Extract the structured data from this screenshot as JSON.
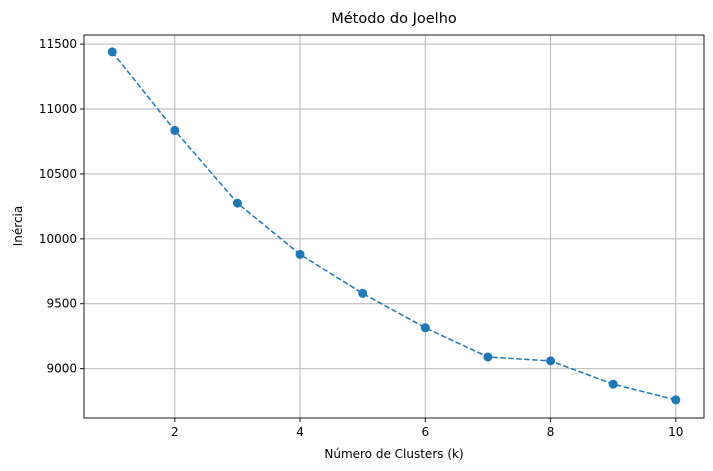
{
  "chart_data": {
    "type": "line",
    "title": "Método do Joelho",
    "xlabel": "Número de Clusters (k)",
    "ylabel": "Inércia",
    "xlim": [
      0.55,
      10.45
    ],
    "ylim": [
      8620,
      11570
    ],
    "xticks": [
      2,
      4,
      6,
      8,
      10
    ],
    "yticks": [
      9000,
      9500,
      10000,
      10500,
      11000,
      11500
    ],
    "grid": true,
    "series": [
      {
        "x": [
          1,
          2,
          3,
          4,
          5,
          6,
          7,
          8,
          9,
          10
        ],
        "values": [
          11440,
          10835,
          10275,
          9880,
          9580,
          9315,
          9090,
          9060,
          8880,
          8760
        ],
        "color": "#1f77b4",
        "line_style": "dashed",
        "marker": "circle"
      }
    ]
  }
}
